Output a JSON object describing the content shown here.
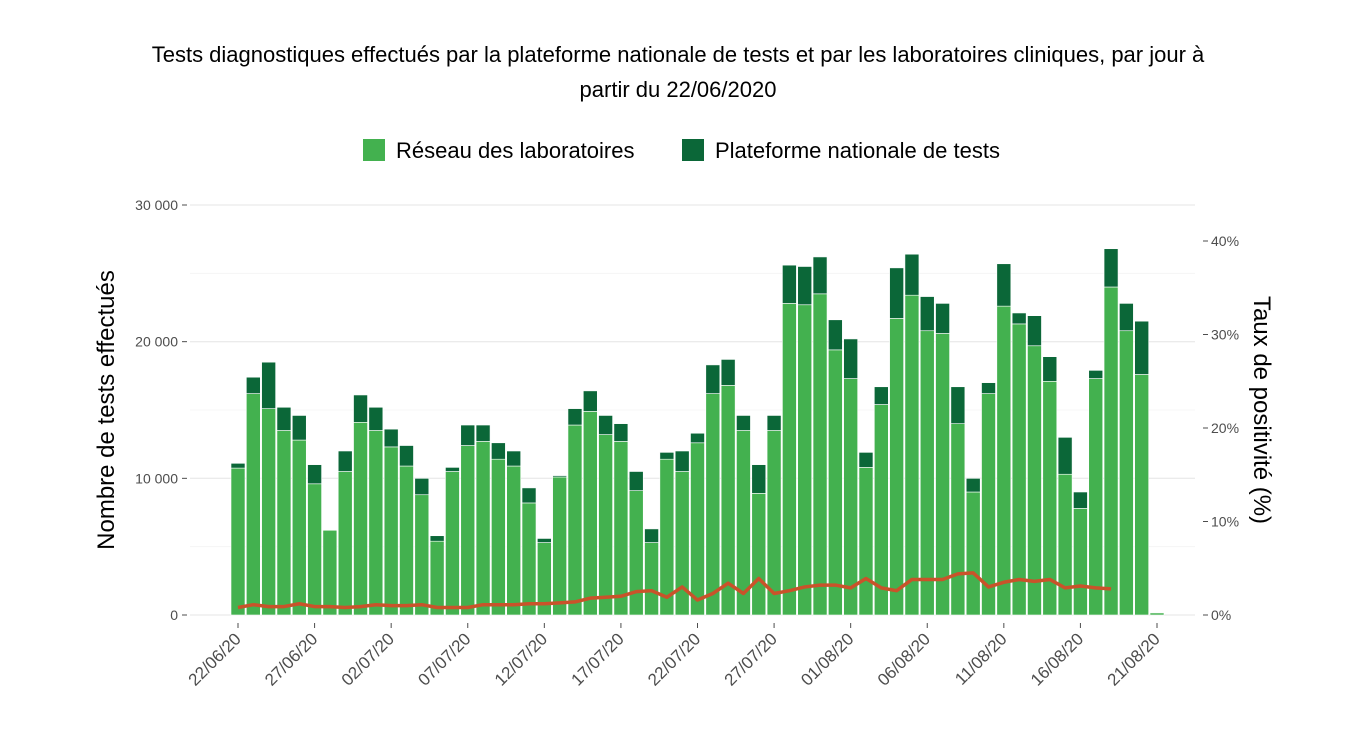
{
  "chart_data": {
    "type": "bar",
    "title_line1": "Tests diagnostiques effectués par la plateforme nationale de tests et par les laboratoires cliniques, par jour à",
    "title_line2": "partir du 22/06/2020",
    "ylabel": "Nombre de tests effectués",
    "y2label": "Taux de positivité (%)",
    "ylim": [
      0,
      30000
    ],
    "y2lim": [
      0,
      40
    ],
    "yticks": [
      "0",
      "10 000",
      "20 000",
      "30 000"
    ],
    "y2ticks": [
      "0%",
      "10%",
      "20%",
      "30%",
      "40%"
    ],
    "xticks": [
      "22/06/20",
      "27/06/20",
      "02/07/20",
      "07/07/20",
      "12/07/20",
      "17/07/20",
      "22/07/20",
      "27/07/20",
      "01/08/20",
      "06/08/20",
      "11/08/20",
      "16/08/20",
      "21/08/20"
    ],
    "legend": [
      "Réseau des laboratoires",
      "Plateforme nationale de tests"
    ],
    "colors": {
      "laboratoires": "#43b14f",
      "plateforme": "#0b6738",
      "positivite": "#c9532a"
    },
    "x": [
      "22/06",
      "23/06",
      "24/06",
      "25/06",
      "26/06",
      "27/06",
      "28/06",
      "29/06",
      "30/06",
      "01/07",
      "02/07",
      "03/07",
      "04/07",
      "05/07",
      "06/07",
      "07/07",
      "08/07",
      "09/07",
      "10/07",
      "11/07",
      "12/07",
      "13/07",
      "14/07",
      "15/07",
      "16/07",
      "17/07",
      "18/07",
      "19/07",
      "20/07",
      "21/07",
      "22/07",
      "23/07",
      "24/07",
      "25/07",
      "26/07",
      "27/07",
      "28/07",
      "29/07",
      "30/07",
      "31/07",
      "01/08",
      "02/08",
      "03/08",
      "04/08",
      "05/08",
      "06/08",
      "07/08",
      "08/08",
      "09/08",
      "10/08",
      "11/08",
      "12/08",
      "13/08",
      "14/08",
      "15/08",
      "16/08",
      "17/08",
      "18/08",
      "19/08",
      "20/08",
      "21/08"
    ],
    "series": [
      {
        "name": "Réseau des laboratoires",
        "values": [
          10750,
          16200,
          15100,
          13500,
          12800,
          9600,
          6200,
          10500,
          14100,
          13500,
          12300,
          10900,
          8800,
          5400,
          10500,
          12400,
          12700,
          11400,
          10900,
          8200,
          5300,
          10100,
          13900,
          14900,
          13200,
          12700,
          9100,
          5300,
          11400,
          10500,
          12600,
          16200,
          16800,
          13500,
          8900,
          13500,
          22800,
          22700,
          23500,
          19400,
          17300,
          10800,
          15400,
          21700,
          23400,
          20800,
          20600,
          14000,
          9000,
          16200,
          22600,
          21300,
          19700,
          17100,
          10300,
          7800,
          17300,
          24000,
          20800,
          17600,
          150
        ]
      },
      {
        "name": "Plateforme nationale de tests",
        "values": [
          350,
          1200,
          3400,
          1700,
          1800,
          1400,
          0,
          1500,
          2000,
          1700,
          1300,
          1500,
          1200,
          400,
          300,
          1500,
          1200,
          1200,
          1100,
          1100,
          300,
          100,
          1200,
          1500,
          1400,
          1300,
          1400,
          1000,
          500,
          1500,
          700,
          2100,
          1900,
          1100,
          2100,
          1100,
          2800,
          2800,
          2700,
          2200,
          2900,
          1100,
          1300,
          3700,
          3000,
          2500,
          2200,
          2700,
          1000,
          800,
          3100,
          800,
          2200,
          1800,
          2700,
          1200,
          600,
          2800,
          2000,
          3900,
          0
        ]
      },
      {
        "name": "Taux de positivité",
        "unit": "%",
        "values": [
          0.8,
          1.1,
          0.9,
          0.9,
          1.2,
          0.9,
          0.9,
          0.8,
          0.9,
          1.1,
          1.0,
          1.0,
          1.1,
          0.8,
          0.8,
          0.8,
          1.1,
          1.1,
          1.1,
          1.2,
          1.2,
          1.3,
          1.4,
          1.8,
          1.9,
          2.0,
          2.5,
          2.6,
          1.9,
          3.0,
          1.6,
          2.3,
          3.4,
          2.3,
          3.9,
          2.3,
          2.6,
          3.0,
          3.2,
          3.2,
          2.9,
          3.9,
          2.9,
          2.6,
          3.8,
          3.8,
          3.8,
          4.4,
          4.5,
          3.0,
          3.5,
          3.8,
          3.6,
          3.8,
          2.9,
          3.1,
          2.9,
          2.8,
          null,
          null,
          null
        ]
      }
    ]
  }
}
